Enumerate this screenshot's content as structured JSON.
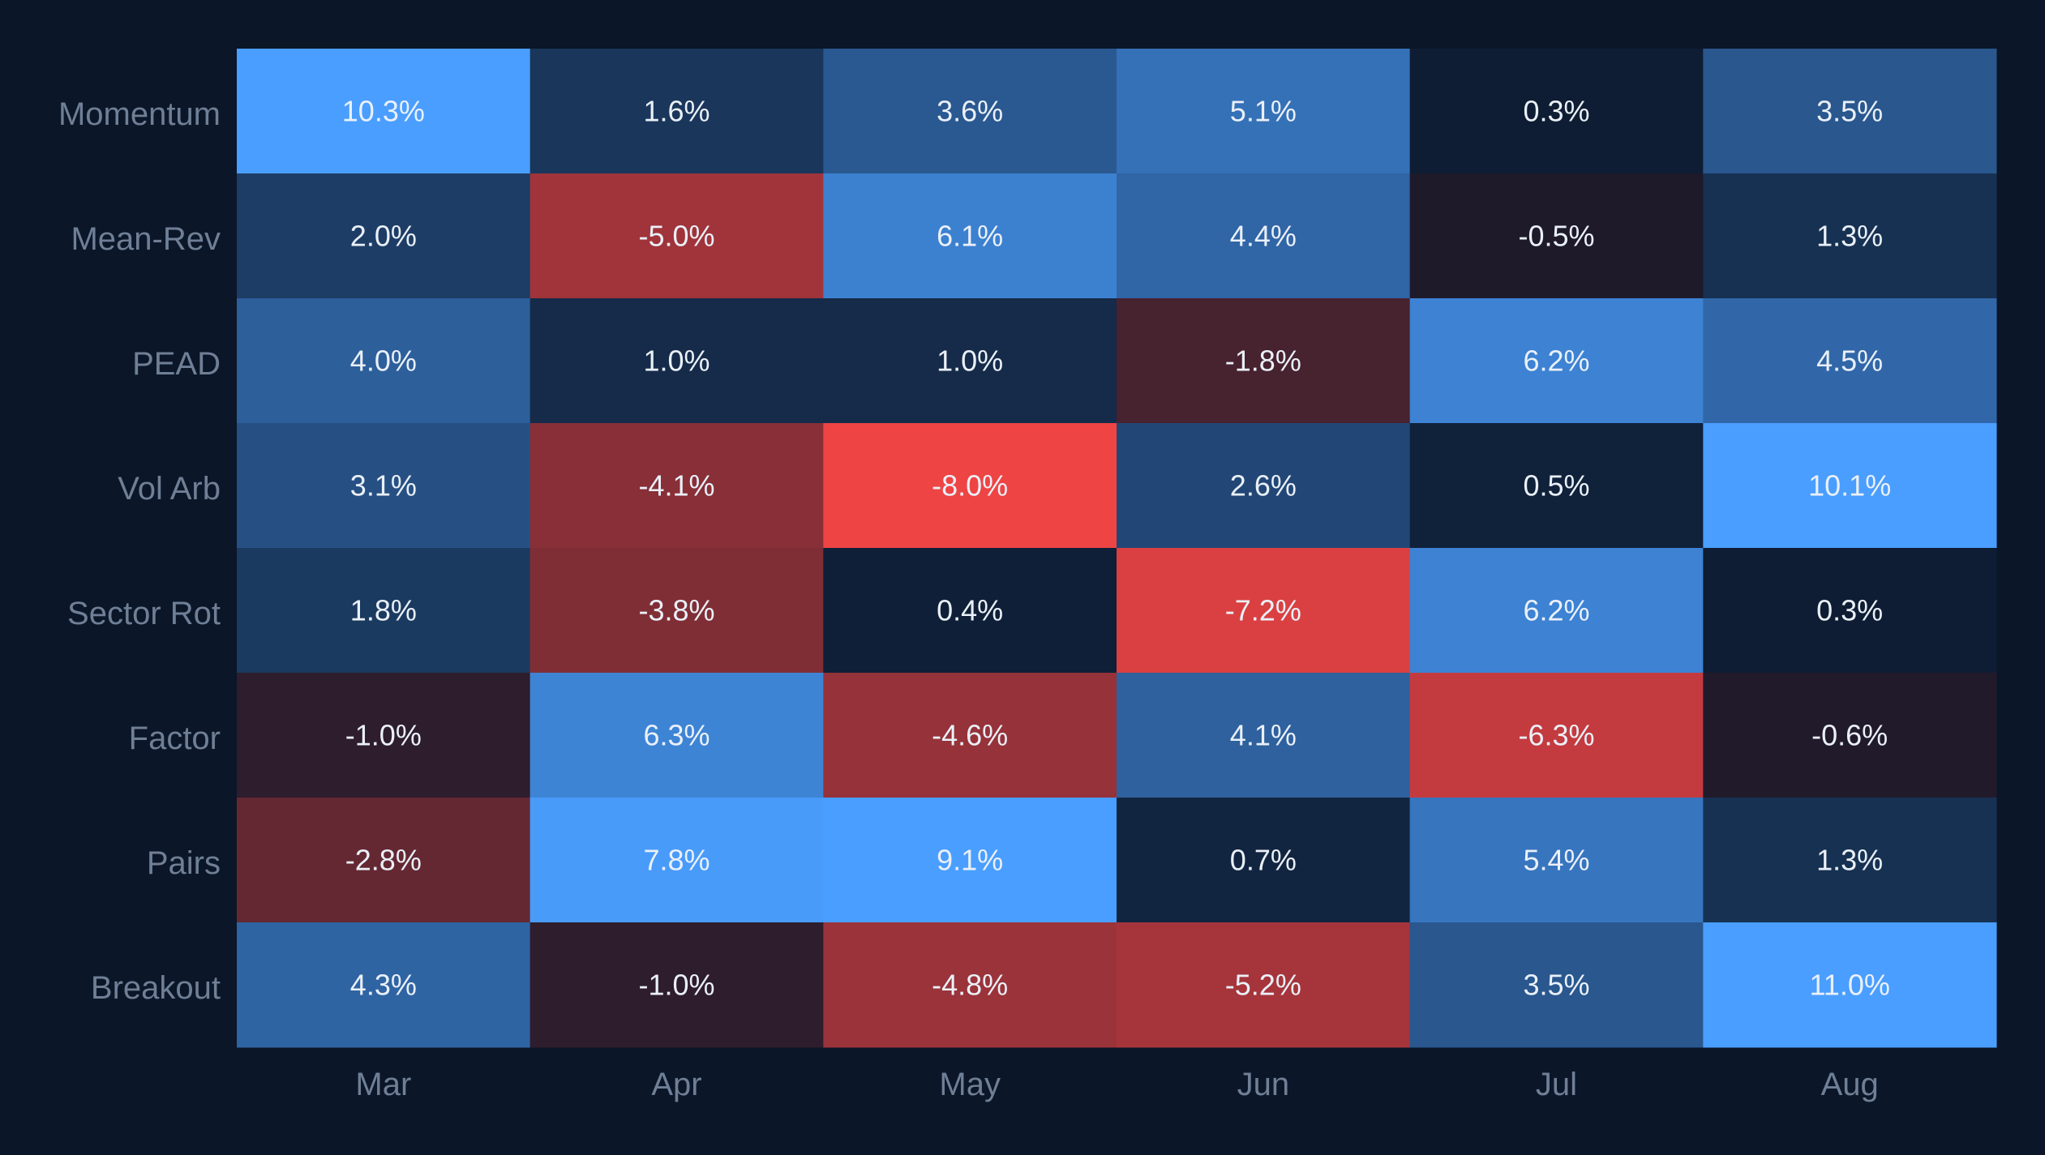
{
  "chart_data": {
    "type": "heatmap",
    "rows": [
      "Momentum",
      "Mean-Rev",
      "PEAD",
      "Vol Arb",
      "Sector Rot",
      "Factor",
      "Pairs",
      "Breakout"
    ],
    "columns": [
      "Mar",
      "Apr",
      "May",
      "Jun",
      "Jul",
      "Aug"
    ],
    "values": [
      [
        10.3,
        1.6,
        3.6,
        5.1,
        0.3,
        3.5
      ],
      [
        2.0,
        -5.0,
        6.1,
        4.4,
        -0.5,
        1.3
      ],
      [
        4.0,
        1.0,
        1.0,
        -1.8,
        6.2,
        4.5
      ],
      [
        3.1,
        -4.1,
        -8.0,
        2.6,
        0.5,
        10.1
      ],
      [
        1.8,
        -3.8,
        0.4,
        -7.2,
        6.2,
        0.3
      ],
      [
        -1.0,
        6.3,
        -4.6,
        4.1,
        -6.3,
        -0.6
      ],
      [
        -2.8,
        7.8,
        9.1,
        0.7,
        5.4,
        1.3
      ],
      [
        4.3,
        -1.0,
        -4.8,
        -5.2,
        3.5,
        11.0
      ]
    ],
    "labels": [
      [
        "10.3%",
        "1.6%",
        "3.6%",
        "5.1%",
        "0.3%",
        "3.5%"
      ],
      [
        "2.0%",
        "-5.0%",
        "6.1%",
        "4.4%",
        "-0.5%",
        "1.3%"
      ],
      [
        "4.0%",
        "1.0%",
        "1.0%",
        "-1.8%",
        "6.2%",
        "4.5%"
      ],
      [
        "3.1%",
        "-4.1%",
        "-8.0%",
        "2.6%",
        "0.5%",
        "10.1%"
      ],
      [
        "1.8%",
        "-3.8%",
        "0.4%",
        "-7.2%",
        "6.2%",
        "0.3%"
      ],
      [
        "-1.0%",
        "6.3%",
        "-4.6%",
        "4.1%",
        "-6.3%",
        "-0.6%"
      ],
      [
        "-2.8%",
        "7.8%",
        "9.1%",
        "0.7%",
        "5.4%",
        "1.3%"
      ],
      [
        "4.3%",
        "-1.0%",
        "-4.8%",
        "-5.2%",
        "3.5%",
        "11.0%"
      ]
    ],
    "color_scale": {
      "negative": "#ef4444",
      "neutral": "#0b1628",
      "positive": "#4a9eff",
      "saturate_at": 8
    },
    "background": "#0b1628",
    "label_color": "#6f7f96",
    "value_text_color": "#eaf0f8"
  }
}
